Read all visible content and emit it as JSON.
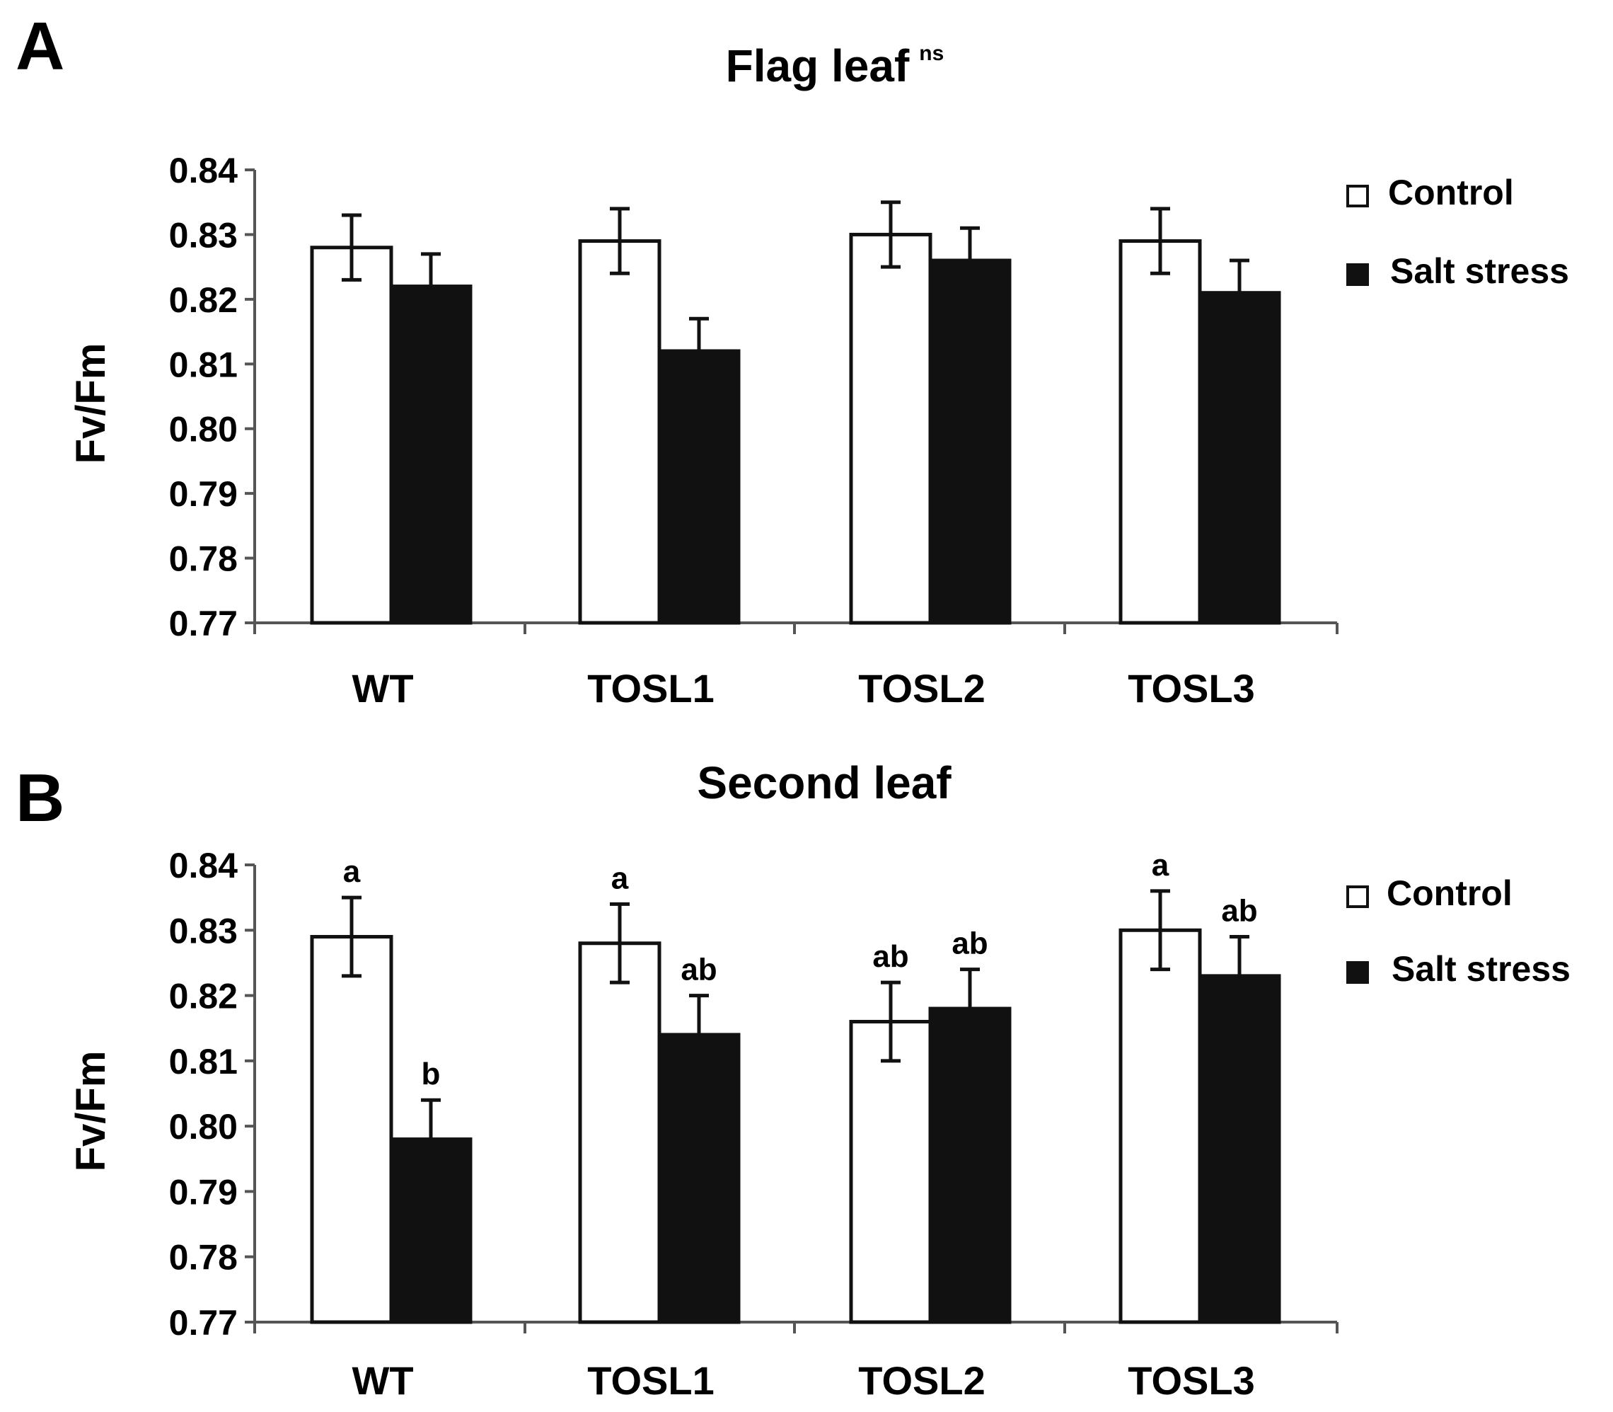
{
  "chart_data": [
    {
      "type": "bar",
      "panel": "A",
      "title": "Flag leaf",
      "title_superscript": "ns",
      "ylabel": "Fv/Fm",
      "xlabel": "",
      "ylim": [
        0.77,
        0.84
      ],
      "yticks": [
        "0.84",
        "0.83",
        "0.82",
        "0.81",
        "0.80",
        "0.79",
        "0.78",
        "0.77"
      ],
      "categories": [
        "WT",
        "TOSL1",
        "TOSL2",
        "TOSL3"
      ],
      "legend_position": "top-right",
      "series": [
        {
          "name": "Control",
          "color": "#ffffff",
          "values": [
            0.828,
            0.829,
            0.83,
            0.829
          ],
          "errors": [
            0.005,
            0.005,
            0.005,
            0.005
          ],
          "labels": [
            "",
            "",
            "",
            ""
          ]
        },
        {
          "name": "Salt stress",
          "color": "#111111",
          "values": [
            0.822,
            0.812,
            0.826,
            0.821
          ],
          "errors": [
            0.005,
            0.005,
            0.005,
            0.005
          ],
          "labels": [
            "",
            "",
            "",
            ""
          ]
        }
      ]
    },
    {
      "type": "bar",
      "panel": "B",
      "title": "Second leaf",
      "title_superscript": "",
      "ylabel": "Fv/Fm",
      "xlabel": "",
      "ylim": [
        0.77,
        0.84
      ],
      "yticks": [
        "0.84",
        "0.83",
        "0.82",
        "0.81",
        "0.80",
        "0.79",
        "0.78",
        "0.77"
      ],
      "categories": [
        "WT",
        "TOSL1",
        "TOSL2",
        "TOSL3"
      ],
      "legend_position": "top-right",
      "series": [
        {
          "name": "Control",
          "color": "#ffffff",
          "values": [
            0.829,
            0.828,
            0.816,
            0.83
          ],
          "errors": [
            0.006,
            0.006,
            0.006,
            0.006
          ],
          "labels": [
            "a",
            "a",
            "ab",
            "a"
          ]
        },
        {
          "name": "Salt stress",
          "color": "#111111",
          "values": [
            0.798,
            0.814,
            0.818,
            0.823
          ],
          "errors": [
            0.006,
            0.006,
            0.006,
            0.006
          ],
          "labels": [
            "b",
            "ab",
            "ab",
            "ab"
          ]
        }
      ]
    }
  ]
}
